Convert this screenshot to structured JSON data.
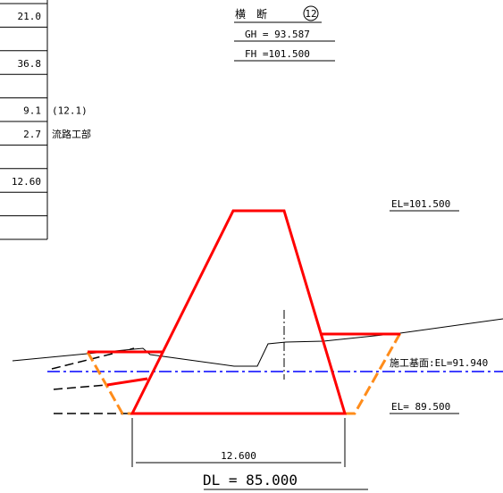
{
  "title": {
    "label": "横　断",
    "number": "12",
    "gh": "GH = 93.587",
    "fh": "FH =101.500"
  },
  "table": {
    "rows": [
      {
        "value": "21.0",
        "note": ""
      },
      {
        "value": "",
        "note": ""
      },
      {
        "value": "36.8",
        "note": ""
      },
      {
        "value": "",
        "note": ""
      },
      {
        "value": "9.1",
        "note": "(12.1)"
      },
      {
        "value": "2.7",
        "note": "流路工部"
      },
      {
        "value": "",
        "note": ""
      },
      {
        "value": "12.60",
        "note": ""
      },
      {
        "value": "",
        "note": ""
      },
      {
        "value": "",
        "note": ""
      }
    ]
  },
  "elevations": {
    "top": "EL=101.500",
    "base": "施工基面:EL=91.940",
    "bottom": "EL= 89.500"
  },
  "dimension": {
    "width": "12.600",
    "datum": "DL = 85.000"
  },
  "colors": {
    "embankment": "#ff0000",
    "excavation": "#ff8c1a",
    "base_line": "#0000ff",
    "ground": "#000000"
  }
}
